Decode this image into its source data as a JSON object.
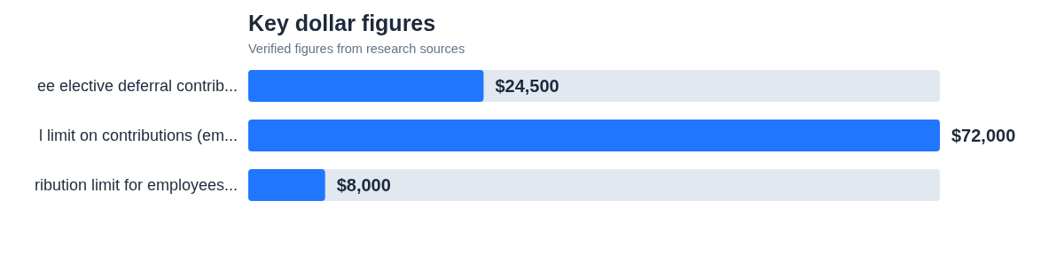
{
  "chart_data": {
    "type": "bar",
    "orientation": "horizontal",
    "title": "Key dollar figures",
    "subtitle": "Verified figures from research sources",
    "categories": [
      "ee elective deferral contrib...",
      "l limit on contributions (em...",
      "ribution limit for employees..."
    ],
    "values": [
      24500,
      72000,
      8000
    ],
    "value_labels": [
      "$24,500",
      "$72,000",
      "$8,000"
    ],
    "color": "#2176ff"
  }
}
